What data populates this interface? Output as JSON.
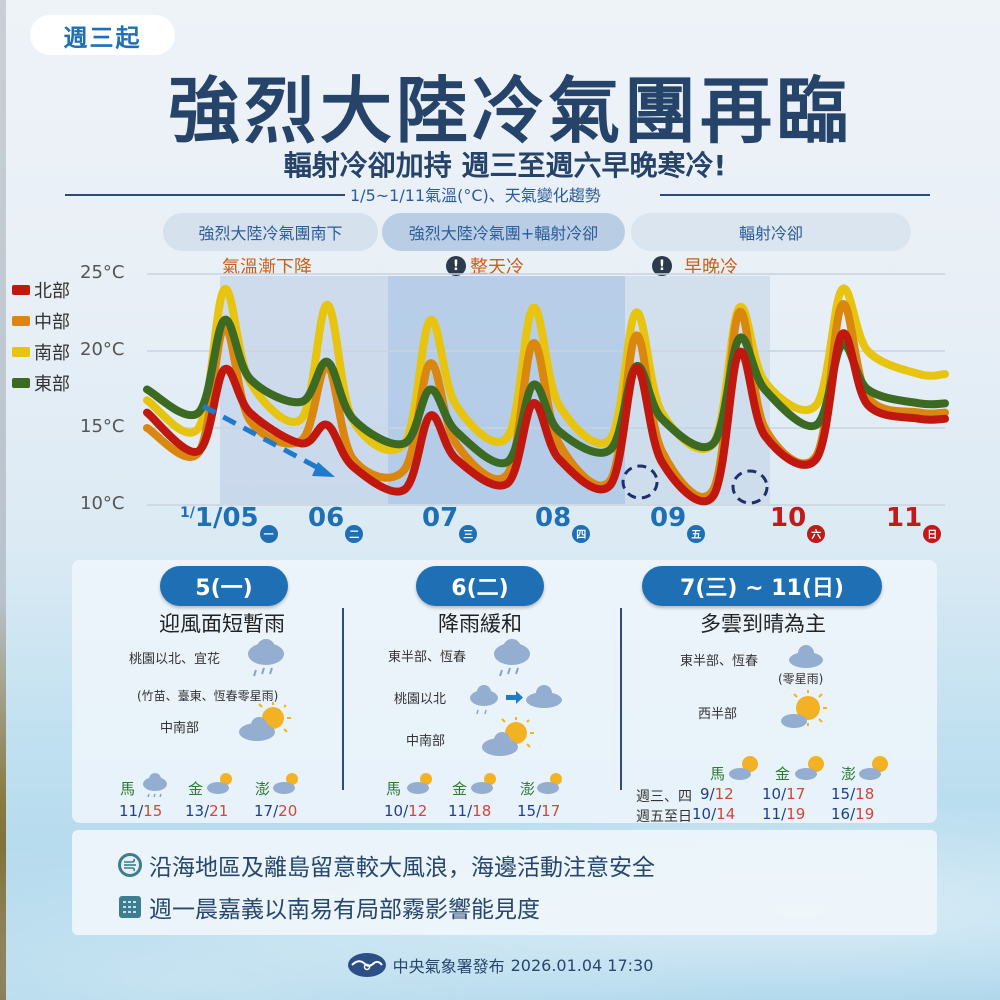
{
  "header": {
    "tag": "週三起",
    "title": "強烈大陸冷氣團再臨",
    "subtitle": "輻射冷卻加持 週三至週六早晚寒冷!",
    "chart_heading": "1/5~1/11氣溫(°C)、天氣變化趨勢"
  },
  "phases": [
    {
      "label": "強烈大陸冷氣團南下",
      "note": "氣溫漸下降",
      "warn": false
    },
    {
      "label": "強烈大陸冷氣團+輻射冷卻",
      "note": "整天冷",
      "warn": true
    },
    {
      "label": "輻射冷卻",
      "note": "早晚冷",
      "warn": true
    }
  ],
  "colors": {
    "north": "#c0180f",
    "central": "#d9870f",
    "south": "#e6c40f",
    "east": "#3d6a22",
    "accent_blue": "#1f6fb5",
    "weekend_red": "#c21a1a",
    "title_navy": "#26446a"
  },
  "chart_data": {
    "type": "line",
    "title": "1/5~1/11氣溫(°C)、天氣變化趨勢",
    "xlabel": "",
    "ylabel": "°C",
    "ylim": [
      10,
      25
    ],
    "yticks": [
      "25°C",
      "20°C",
      "15°C",
      "10°C"
    ],
    "grid": true,
    "legend_position": "left",
    "categories": [
      "1/05",
      "06",
      "07",
      "08",
      "09",
      "10",
      "11"
    ],
    "day_of_week": [
      "一",
      "二",
      "三",
      "四",
      "五",
      "六",
      "日"
    ],
    "x_hours": [
      0,
      12,
      18,
      24,
      36,
      42,
      48,
      60,
      66,
      72,
      84,
      90,
      96,
      108,
      114,
      120,
      132,
      138,
      144,
      156,
      162,
      168,
      180,
      186
    ],
    "series": [
      {
        "name": "北部",
        "key": "north",
        "values": [
          16.0,
          13.5,
          18.8,
          16.0,
          14.0,
          15.2,
          12.5,
          11.0,
          15.8,
          13.0,
          11.4,
          16.6,
          13.0,
          11.3,
          18.9,
          12.8,
          10.6,
          19.9,
          14.5,
          13.0,
          21.1,
          16.5,
          15.6,
          15.6
        ]
      },
      {
        "name": "中部",
        "key": "central",
        "values": [
          15.0,
          13.4,
          21.5,
          15.5,
          14.2,
          19.0,
          13.0,
          12.3,
          19.2,
          14.0,
          12.0,
          20.5,
          14.0,
          11.6,
          21.0,
          13.5,
          11.0,
          22.5,
          15.0,
          13.2,
          23.0,
          17.0,
          16.0,
          16.0
        ]
      },
      {
        "name": "南部",
        "key": "south",
        "values": [
          16.8,
          15.0,
          24.0,
          18.0,
          15.6,
          23.0,
          15.5,
          14.0,
          22.0,
          16.5,
          14.4,
          22.8,
          16.5,
          14.3,
          22.5,
          16.0,
          14.0,
          22.8,
          18.0,
          16.5,
          24.0,
          20.0,
          18.5,
          18.5
        ]
      },
      {
        "name": "東部",
        "key": "east",
        "values": [
          17.5,
          16.0,
          22.0,
          18.2,
          16.7,
          19.3,
          15.6,
          14.0,
          17.5,
          14.8,
          12.8,
          17.8,
          14.8,
          13.6,
          19.0,
          15.6,
          14.0,
          20.8,
          17.5,
          15.2,
          20.4,
          17.5,
          16.6,
          16.6
        ]
      }
    ],
    "annotations": [
      {
        "type": "dashed-arrow",
        "text": "",
        "desc": "downward trend 1/05→1/06"
      },
      {
        "type": "circle",
        "desc": "北部 low ~11°C before 1/09"
      },
      {
        "type": "circle",
        "desc": "北部 low ~10.5°C before 1/10"
      }
    ]
  },
  "days": [
    {
      "pill": "5(一)",
      "title": "迎風面短暫雨",
      "regions": [
        {
          "label": "桃園以北、宜花",
          "icon": "rain-cloud-icon"
        },
        {
          "label": "(竹苗、臺東、恆春零星雨)",
          "icon": ""
        },
        {
          "label": "中南部",
          "icon": "partly-sunny-icon"
        }
      ],
      "islands": [
        {
          "name": "馬",
          "icon": "rain-cloud-icon",
          "lo": "11",
          "hi": "15"
        },
        {
          "name": "金",
          "icon": "partly-sunny-icon",
          "lo": "13",
          "hi": "21"
        },
        {
          "name": "澎",
          "icon": "partly-sunny-icon",
          "lo": "17",
          "hi": "20"
        }
      ]
    },
    {
      "pill": "6(二)",
      "title": "降雨緩和",
      "regions": [
        {
          "label": "東半部、恆春",
          "icon": "rain-cloud-icon"
        },
        {
          "label": "桃園以北",
          "icon": "rain-to-cloud-icon"
        },
        {
          "label": "中南部",
          "icon": "partly-sunny-icon"
        }
      ],
      "islands": [
        {
          "name": "馬",
          "icon": "partly-sunny-icon",
          "lo": "10",
          "hi": "12"
        },
        {
          "name": "金",
          "icon": "partly-sunny-icon",
          "lo": "11",
          "hi": "18"
        },
        {
          "name": "澎",
          "icon": "partly-sunny-icon",
          "lo": "15",
          "hi": "17"
        }
      ]
    },
    {
      "pill": "7(三) ~ 11(日)",
      "title": "多雲到晴為主",
      "regions": [
        {
          "label": "東半部、恆春",
          "icon": "cloud-icon",
          "note": "(零星雨)"
        },
        {
          "label": "西半部",
          "icon": "sunny-cloud-icon"
        }
      ],
      "islands": [
        {
          "name": "馬",
          "icon": "sunny-cloud-icon"
        },
        {
          "name": "金",
          "icon": "sunny-cloud-icon"
        },
        {
          "name": "澎",
          "icon": "sunny-cloud-icon"
        }
      ],
      "rows": [
        {
          "label": "週三、四",
          "temps": [
            {
              "lo": "9",
              "hi": "12"
            },
            {
              "lo": "10",
              "hi": "17"
            },
            {
              "lo": "15",
              "hi": "18"
            }
          ]
        },
        {
          "label": "週五至日",
          "temps": [
            {
              "lo": "10",
              "hi": "14"
            },
            {
              "lo": "11",
              "hi": "19"
            },
            {
              "lo": "16",
              "hi": "19"
            }
          ]
        }
      ]
    }
  ],
  "notices": [
    {
      "icon": "wind-wave-icon",
      "text": "沿海地區及離島留意較大風浪，海邊活動注意安全"
    },
    {
      "icon": "fog-icon",
      "text": "週一晨嘉義以南易有局部霧影響能見度"
    }
  ],
  "footer": {
    "publisher": "中央氣象署發布",
    "datetime": "2026.01.04 17:30"
  }
}
